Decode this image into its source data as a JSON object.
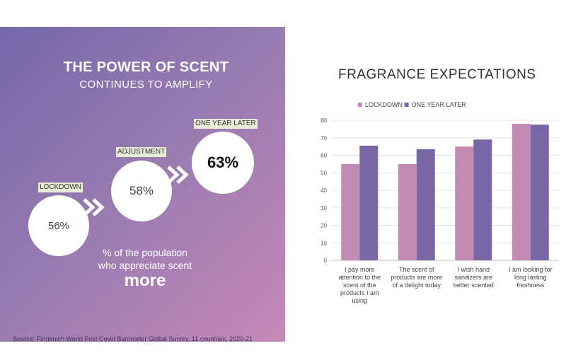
{
  "infographic": {
    "title": "THE POWER OF SCENT",
    "subtitle": "CONTINUES TO AMPLIFY",
    "stages": [
      {
        "label": "LOCKDOWN",
        "value": "56%"
      },
      {
        "label": "ADJUSTMENT",
        "value": "58%"
      },
      {
        "label": "ONE YEAR LATER",
        "value": "63%"
      }
    ],
    "caption_line1": "% of the population",
    "caption_line2": "who appreciate scent",
    "caption_emphasis": "more",
    "source": "Source: Firmenich World Post Covid Barometer Global Survey, 11 countries, 2020-21",
    "colors": {
      "gradient_start": "#7468ab",
      "gradient_end": "#c788b8"
    }
  },
  "chart_data": {
    "type": "bar",
    "title": "FRAGRANCE EXPECTATIONS",
    "categories": [
      [
        "I pay more",
        "attention to the",
        "scent of the",
        "products I am",
        "using"
      ],
      [
        "The scent of",
        "products are more",
        "of a delight today"
      ],
      [
        "I wish hand",
        "sanitizers are",
        "better scented"
      ],
      [
        "I am looking for",
        "long lasting",
        "freshness"
      ]
    ],
    "series": [
      {
        "name": "LOCKDOWN",
        "color": "#c28bb3",
        "values": [
          55,
          55,
          65,
          78
        ]
      },
      {
        "name": "ONE YEAR LATER",
        "color": "#7866a6",
        "values": [
          65.5,
          63.5,
          69,
          77.5
        ]
      }
    ],
    "ylim": [
      0,
      80
    ],
    "yticks": [
      0,
      10,
      20,
      30,
      40,
      50,
      60,
      70,
      80
    ],
    "grid": true,
    "legend": "top"
  }
}
